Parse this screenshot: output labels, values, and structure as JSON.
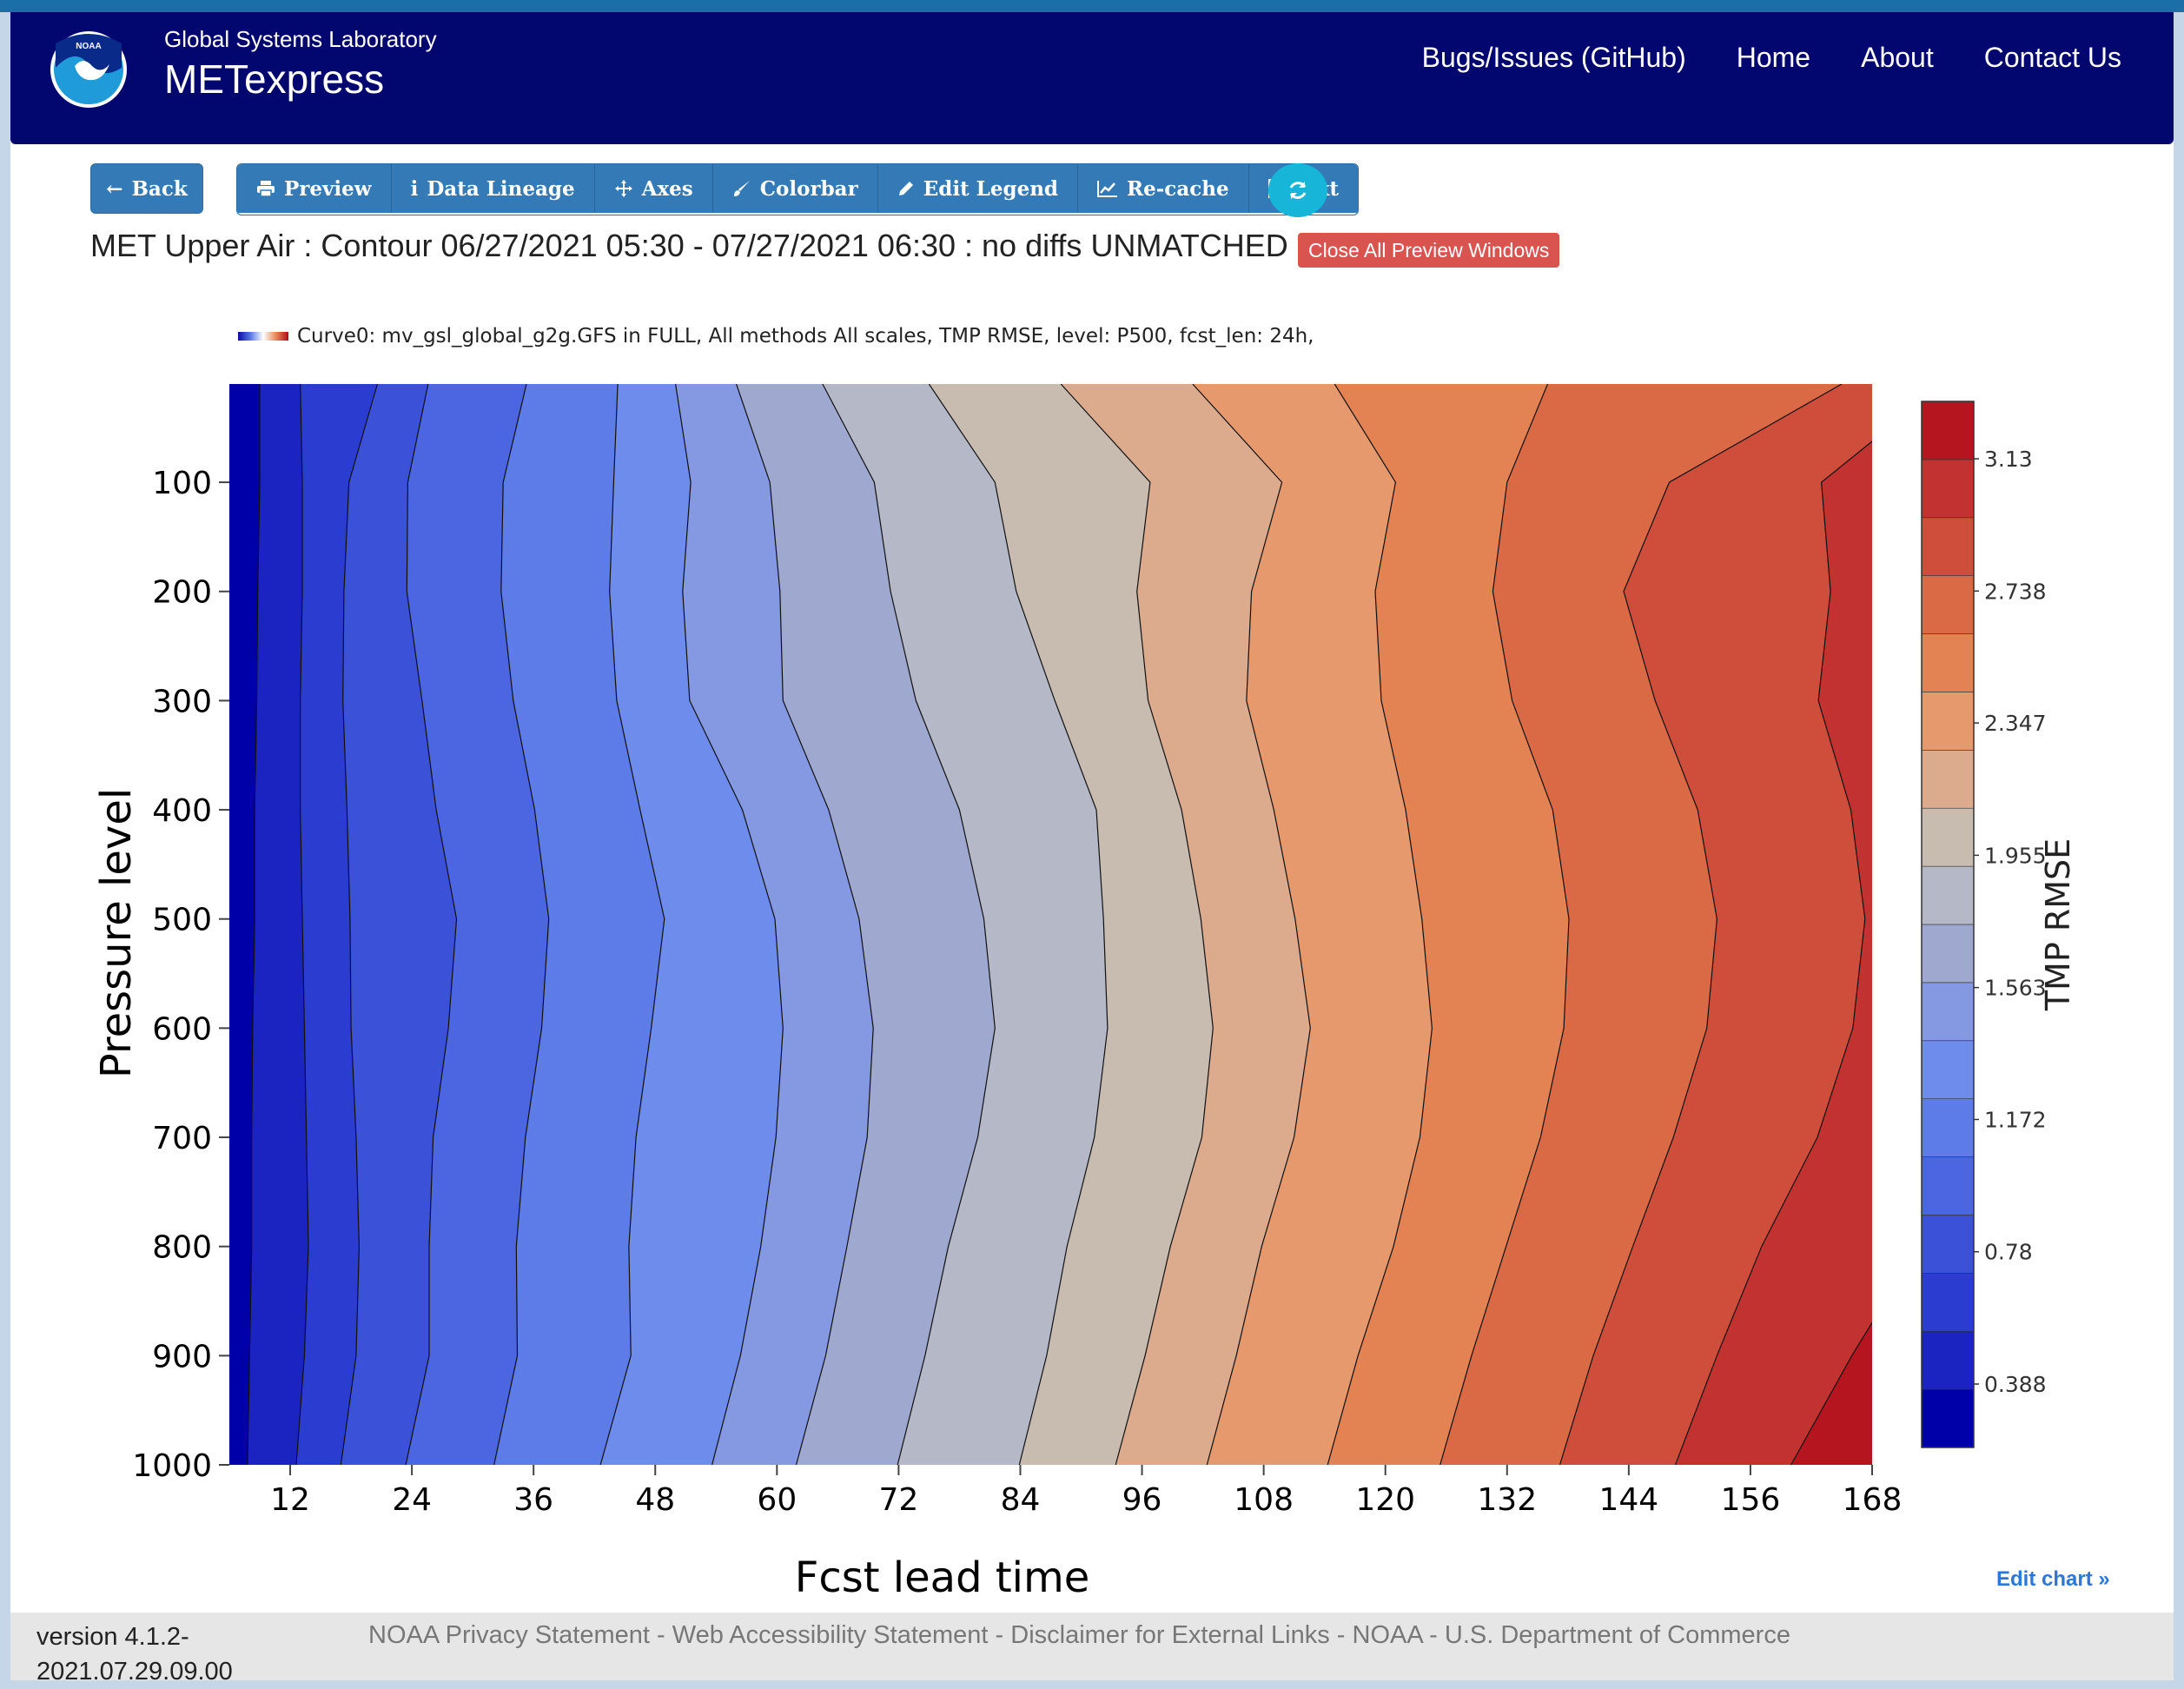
{
  "navbar": {
    "lab": "Global Systems Laboratory",
    "app": "METexpress",
    "logo_text": "NOAA",
    "links": [
      "Bugs/Issues (GitHub)",
      "Home",
      "About",
      "Contact Us"
    ]
  },
  "toolbar": {
    "back": "Back",
    "buttons": [
      "Preview",
      "Data Lineage",
      "Axes",
      "Colorbar",
      "Edit Legend",
      "Re-cache",
      "Text"
    ]
  },
  "heading": "MET Upper Air : Contour 06/27/2021 05:30 - 07/27/2021 06:30 : no diffs UNMATCHED",
  "close_button": "Close All Preview Windows",
  "legend_text": "Curve0: mv_gsl_global_g2g.GFS in FULL, All methods All scales, TMP RMSE, level: P500, fcst_len: 24h,",
  "chart_data": {
    "type": "contour",
    "xlabel": "Fcst lead time",
    "ylabel": "Pressure level",
    "x_ticks": [
      12,
      24,
      36,
      48,
      60,
      72,
      84,
      96,
      108,
      120,
      132,
      144,
      156,
      168
    ],
    "y_ticks": [
      100,
      200,
      300,
      400,
      500,
      600,
      700,
      800,
      900,
      1000
    ],
    "xlim": [
      6,
      168
    ],
    "ylim": [
      10,
      1000
    ],
    "y_reversed": true,
    "colorbar": {
      "title": "TMP RMSE",
      "ticks": [
        3.13,
        2.738,
        2.347,
        1.955,
        1.563,
        1.172,
        0.78,
        0.388
      ],
      "range": [
        0.2,
        3.3
      ],
      "colors": [
        "#0000a8",
        "#1b24c0",
        "#2b3dd0",
        "#3b52d8",
        "#4c66e2",
        "#5d7ce8",
        "#6e8cec",
        "#8598e2",
        "#9fa8cf",
        "#b5b9c7",
        "#c8bcb0",
        "#dcaa8c",
        "#e6996d",
        "#e38253",
        "#d96a45",
        "#cf4e3b",
        "#c13230",
        "#b4151f"
      ]
    },
    "contour_lines": [
      {
        "level": 0.44,
        "x": [
          9.0,
          9.0,
          8.8,
          8.7,
          8.5,
          8.5,
          8.3,
          8.2,
          8.2,
          8.0,
          7.8
        ]
      },
      {
        "level": 0.61,
        "x": [
          13.0,
          13.2,
          13.2,
          13.0,
          13.0,
          13.2,
          13.4,
          13.6,
          13.8,
          13.4,
          12.6
        ]
      },
      {
        "level": 0.78,
        "x": [
          20.6,
          17.8,
          17.3,
          17.2,
          17.6,
          17.9,
          18.0,
          18.5,
          18.8,
          18.5,
          17.0
        ]
      },
      {
        "level": 0.95,
        "x": [
          25.6,
          23.6,
          23.5,
          25.0,
          26.4,
          28.4,
          27.6,
          26.1,
          25.7,
          25.7,
          23.4
        ]
      },
      {
        "level": 1.12,
        "x": [
          35.3,
          33.0,
          32.8,
          34.0,
          36.1,
          37.5,
          36.8,
          35.2,
          34.3,
          34.4,
          32.1
        ]
      },
      {
        "level": 1.29,
        "x": [
          44.3,
          43.9,
          43.5,
          44.2,
          46.5,
          48.9,
          47.6,
          46.1,
          45.4,
          45.6,
          42.6
        ]
      },
      {
        "level": 1.46,
        "x": [
          50.0,
          51.5,
          50.7,
          51.4,
          56.6,
          59.8,
          60.6,
          59.9,
          58.4,
          56.4,
          53.6
        ]
      },
      {
        "level": 1.63,
        "x": [
          56.0,
          59.3,
          60.3,
          60.6,
          65.1,
          68.1,
          69.5,
          68.9,
          66.9,
          64.8,
          61.9
        ]
      },
      {
        "level": 1.8,
        "x": [
          64.5,
          69.6,
          71.2,
          73.7,
          78.0,
          80.4,
          81.5,
          79.8,
          76.9,
          74.6,
          71.9
        ]
      },
      {
        "level": 1.97,
        "x": [
          75.0,
          81.5,
          83.6,
          87.4,
          91.5,
          92.2,
          92.6,
          91.3,
          88.6,
          86.6,
          83.9
        ]
      },
      {
        "level": 2.14,
        "x": [
          88.0,
          96.8,
          95.5,
          96.6,
          99.9,
          101.8,
          103.0,
          101.9,
          98.8,
          96.3,
          93.4
        ]
      },
      {
        "level": 2.31,
        "x": [
          101.0,
          109.8,
          106.8,
          106.3,
          109.0,
          111.1,
          112.6,
          111.0,
          107.8,
          105.3,
          102.4
        ]
      },
      {
        "level": 2.48,
        "x": [
          115.0,
          121.0,
          119.0,
          119.6,
          122.0,
          123.6,
          124.6,
          123.4,
          120.8,
          117.3,
          114.3
        ]
      },
      {
        "level": 2.65,
        "x": [
          136.0,
          132.0,
          130.6,
          132.5,
          136.5,
          138.1,
          137.6,
          135.3,
          131.9,
          128.5,
          125.4
        ]
      },
      {
        "level": 2.82,
        "x": [
          165.0,
          148.0,
          143.5,
          146.6,
          150.8,
          152.7,
          151.7,
          148.4,
          144.4,
          140.5,
          137.2
        ]
      },
      {
        "level": 2.99,
        "x": [
          175.0,
          163.0,
          163.9,
          162.7,
          165.9,
          167.3,
          166.1,
          162.6,
          157.1,
          152.7,
          148.6
        ]
      },
      {
        "level": 3.16,
        "x": [
          190.0,
          181.0,
          180.5,
          181.0,
          183.0,
          184.0,
          183.0,
          180.0,
          172.6,
          166.0,
          160.0
        ]
      }
    ],
    "contour_line_pressures": [
      10,
      100,
      200,
      300,
      400,
      500,
      600,
      700,
      800,
      900,
      1000
    ]
  },
  "edit_chart": "Edit chart »",
  "footer": {
    "version": "version 4.1.2-2021.07.29.09.00",
    "links": [
      "NOAA Privacy Statement",
      "Web Accessibility Statement",
      "Disclaimer for External Links",
      "NOAA",
      "U.S. Department of Commerce"
    ],
    "separator": " - "
  }
}
